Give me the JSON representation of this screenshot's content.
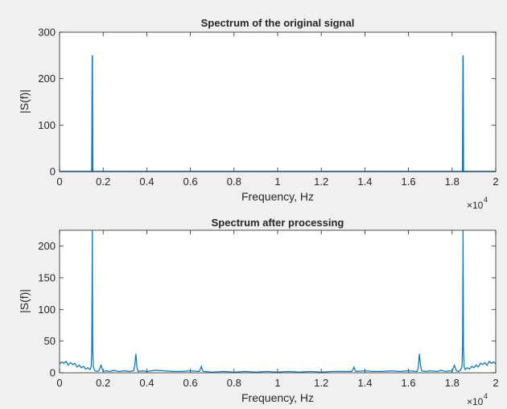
{
  "colors": {
    "background": "#f0f0f0",
    "axes_background": "#ffffff",
    "line": "#0072bd",
    "axis": "#262626"
  },
  "chart_data": [
    {
      "type": "line",
      "title": "Spectrum of the original signal",
      "xlabel": "Frequency, Hz",
      "ylabel": "|S(f)|",
      "x_exponent_label": "×10",
      "x_exponent_power": "4",
      "xlim": [
        0,
        20000
      ],
      "ylim": [
        0,
        300
      ],
      "xticks": [
        0,
        2000,
        4000,
        6000,
        8000,
        10000,
        12000,
        14000,
        16000,
        18000,
        20000
      ],
      "xticklabels": [
        "0",
        "0.2",
        "0.4",
        "0.6",
        "0.8",
        "1",
        "1.2",
        "1.4",
        "1.6",
        "1.8",
        "2"
      ],
      "yticks": [
        0,
        100,
        200,
        300
      ],
      "yticklabels": [
        "0",
        "100",
        "200",
        "300"
      ],
      "grid": false,
      "series": [
        {
          "x": [
            0,
            1400,
            1480,
            1500,
            1520,
            1600,
            18400,
            18480,
            18500,
            18520,
            18600,
            20000
          ],
          "y": [
            0,
            0,
            0,
            250,
            0,
            0,
            0,
            0,
            250,
            0,
            0,
            0
          ]
        }
      ]
    },
    {
      "type": "line",
      "title": "Spectrum after processing",
      "xlabel": "Frequency, Hz",
      "ylabel": "|S(f)|",
      "x_exponent_label": "×10",
      "x_exponent_power": "4",
      "xlim": [
        0,
        20000
      ],
      "ylim": [
        0,
        225
      ],
      "xticks": [
        0,
        2000,
        4000,
        6000,
        8000,
        10000,
        12000,
        14000,
        16000,
        18000,
        20000
      ],
      "xticklabels": [
        "0",
        "0.2",
        "0.4",
        "0.6",
        "0.8",
        "1",
        "1.2",
        "1.4",
        "1.6",
        "1.8",
        "2"
      ],
      "yticks": [
        0,
        50,
        100,
        150,
        200
      ],
      "yticklabels": [
        "0",
        "50",
        "100",
        "150",
        "200"
      ],
      "grid": false,
      "series": [
        {
          "x": [
            0,
            100,
            200,
            300,
            400,
            500,
            600,
            700,
            800,
            900,
            1000,
            1100,
            1200,
            1300,
            1400,
            1450,
            1480,
            1500,
            1520,
            1550,
            1600,
            1700,
            1800,
            1900,
            2000,
            2100,
            2300,
            2500,
            2700,
            3000,
            3200,
            3400,
            3450,
            3500,
            3550,
            3600,
            3800,
            4000,
            4400,
            4800,
            5200,
            5600,
            6000,
            6400,
            6450,
            6500,
            6550,
            6600,
            7000,
            7500,
            8000,
            8500,
            9000,
            9500,
            10000,
            10500,
            11000,
            11500,
            12000,
            12500,
            13000,
            13400,
            13450,
            13500,
            13550,
            13600,
            14000,
            14400,
            14800,
            15200,
            15600,
            16000,
            16400,
            16450,
            16500,
            16550,
            16600,
            16800,
            17000,
            17300,
            17500,
            17700,
            17900,
            18000,
            18100,
            18200,
            18300,
            18400,
            18450,
            18480,
            18500,
            18520,
            18550,
            18600,
            18700,
            18800,
            18900,
            19000,
            19100,
            19200,
            19300,
            19400,
            19500,
            19600,
            19700,
            19800,
            19900,
            20000
          ],
          "y": [
            14,
            17,
            15,
            18,
            12,
            16,
            13,
            15,
            9,
            12,
            8,
            10,
            6,
            8,
            5,
            10,
            40,
            225,
            40,
            10,
            4,
            2,
            3,
            12,
            2,
            3,
            2,
            4,
            2,
            3,
            2,
            3,
            12,
            30,
            8,
            2,
            3,
            2,
            4,
            3,
            2,
            2,
            3,
            2,
            5,
            10,
            4,
            2,
            1,
            2,
            1,
            2,
            1,
            2,
            1,
            2,
            1,
            2,
            1,
            2,
            2,
            2,
            5,
            9,
            4,
            2,
            3,
            2,
            2,
            3,
            2,
            3,
            2,
            8,
            30,
            12,
            3,
            2,
            3,
            2,
            4,
            2,
            3,
            2,
            12,
            3,
            2,
            5,
            10,
            40,
            225,
            40,
            10,
            5,
            8,
            6,
            10,
            8,
            12,
            9,
            15,
            13,
            16,
            12,
            18,
            15,
            17,
            14
          ]
        }
      ]
    }
  ]
}
